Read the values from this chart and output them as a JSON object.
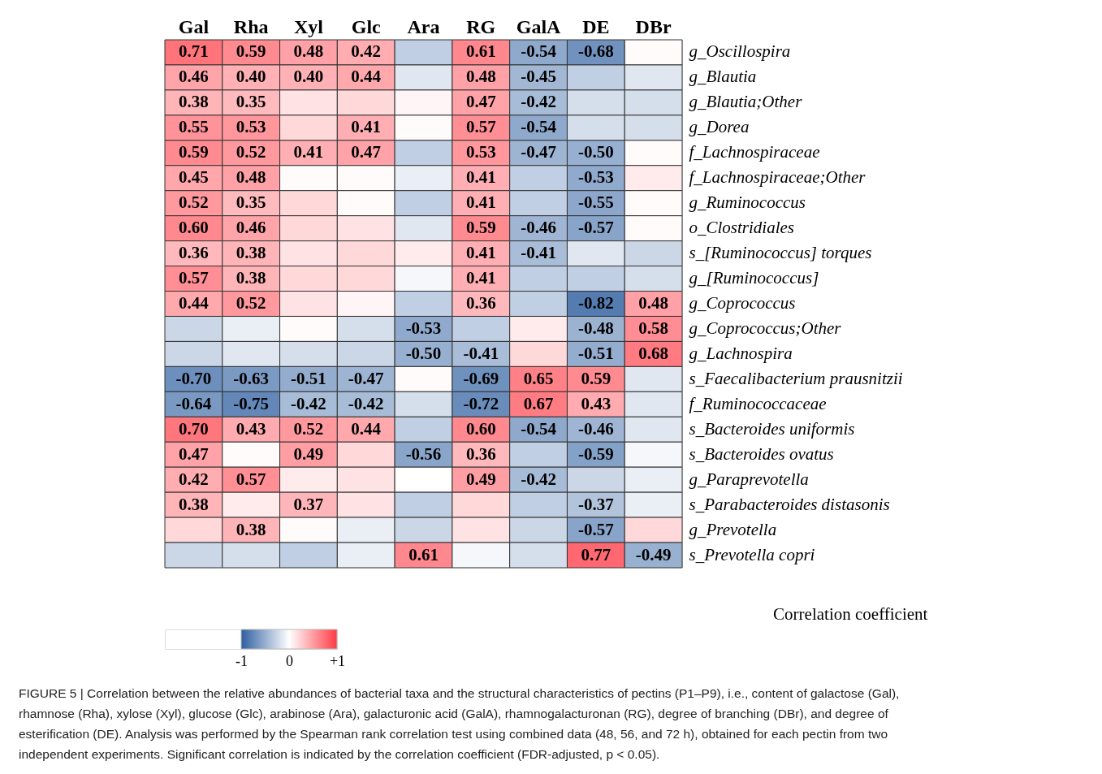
{
  "chart_data": {
    "type": "heatmap",
    "categories": [
      "Gal",
      "Rha",
      "Xyl",
      "Glc",
      "Ara",
      "RG",
      "GalA",
      "DE",
      "DBr"
    ],
    "y_categories": [
      "g_Oscillospira",
      "g_Blautia",
      "g_Blautia;Other",
      "g_Dorea",
      "f_Lachnospiraceae",
      "f_Lachnospiraceae;Other",
      "g_Ruminococcus",
      "o_Clostridiales",
      "s_[Ruminococcus] torques",
      "g_[Ruminococcus]",
      "g_Coprococcus",
      "g_Coprococcus;Other",
      "g_Lachnospira",
      "s_Faecalibacterium prausnitzii",
      "f_Ruminococcaceae",
      "s_Bacteroides uniformis",
      "s_Bacteroides ovatus",
      "g_Paraprevotella",
      "s_Parabacteroides distasonis",
      "g_Prevotella",
      "s_Prevotella copri"
    ],
    "cells": [
      [
        0.71,
        0.59,
        0.48,
        0.42,
        -0.3,
        0.61,
        -0.54,
        -0.68,
        0.02
      ],
      [
        0.46,
        0.4,
        0.4,
        0.44,
        -0.15,
        0.48,
        -0.45,
        -0.3,
        -0.15
      ],
      [
        0.38,
        0.35,
        0.15,
        0.2,
        0.05,
        0.47,
        -0.42,
        -0.2,
        -0.2
      ],
      [
        0.55,
        0.53,
        0.2,
        0.41,
        0.02,
        0.57,
        -0.54,
        -0.2,
        -0.2
      ],
      [
        0.59,
        0.52,
        0.41,
        0.47,
        -0.3,
        0.53,
        -0.47,
        -0.5,
        0.02
      ],
      [
        0.45,
        0.48,
        0.02,
        0.02,
        -0.1,
        0.41,
        -0.3,
        -0.53,
        0.1
      ],
      [
        0.52,
        0.35,
        0.2,
        0.02,
        -0.3,
        0.41,
        -0.3,
        -0.55,
        0.02
      ],
      [
        0.6,
        0.46,
        0.2,
        0.15,
        -0.15,
        0.59,
        -0.46,
        -0.57,
        0.02
      ],
      [
        0.36,
        0.38,
        0.15,
        0.2,
        0.1,
        0.41,
        -0.41,
        -0.15,
        -0.25
      ],
      [
        0.57,
        0.38,
        0.2,
        0.2,
        -0.05,
        0.41,
        -0.3,
        -0.3,
        -0.2
      ],
      [
        0.44,
        0.52,
        0.15,
        0.05,
        -0.3,
        0.36,
        -0.3,
        -0.82,
        0.48
      ],
      [
        -0.25,
        -0.1,
        0.02,
        -0.2,
        -0.53,
        -0.3,
        0.1,
        -0.48,
        0.58
      ],
      [
        -0.25,
        -0.15,
        -0.2,
        -0.25,
        -0.5,
        -0.41,
        0.2,
        -0.51,
        0.68
      ],
      [
        -0.7,
        -0.63,
        -0.51,
        -0.47,
        0.02,
        -0.69,
        0.65,
        0.59,
        -0.15
      ],
      [
        -0.64,
        -0.75,
        -0.42,
        -0.42,
        -0.2,
        -0.72,
        0.67,
        0.43,
        -0.15
      ],
      [
        0.7,
        0.43,
        0.52,
        0.44,
        -0.3,
        0.6,
        -0.54,
        -0.46,
        -0.15
      ],
      [
        0.47,
        0.02,
        0.49,
        0.2,
        -0.56,
        0.36,
        -0.3,
        -0.59,
        -0.05
      ],
      [
        0.42,
        0.57,
        0.1,
        0.15,
        0.0,
        0.49,
        -0.42,
        -0.25,
        -0.1
      ],
      [
        0.38,
        0.1,
        0.37,
        0.15,
        -0.3,
        0.2,
        -0.3,
        -0.37,
        -0.1
      ],
      [
        0.2,
        0.38,
        0.02,
        -0.1,
        -0.25,
        0.15,
        -0.25,
        -0.57,
        0.2
      ],
      [
        -0.25,
        -0.2,
        -0.3,
        -0.1,
        0.61,
        -0.05,
        -0.2,
        0.77,
        -0.49
      ]
    ],
    "cell_labels": [
      [
        "0.71",
        "0.59",
        "0.48",
        "0.42",
        null,
        "0.61",
        "-0.54",
        "-0.68",
        null
      ],
      [
        "0.46",
        "0.40",
        "0.40",
        "0.44",
        null,
        "0.48",
        "-0.45",
        null,
        null
      ],
      [
        "0.38",
        "0.35",
        null,
        null,
        null,
        "0.47",
        "-0.42",
        null,
        null
      ],
      [
        "0.55",
        "0.53",
        null,
        "0.41",
        null,
        "0.57",
        "-0.54",
        null,
        null
      ],
      [
        "0.59",
        "0.52",
        "0.41",
        "0.47",
        null,
        "0.53",
        "-0.47",
        "-0.50",
        null
      ],
      [
        "0.45",
        "0.48",
        null,
        null,
        null,
        "0.41",
        null,
        "-0.53",
        null
      ],
      [
        "0.52",
        "0.35",
        null,
        null,
        null,
        "0.41",
        null,
        "-0.55",
        null
      ],
      [
        "0.60",
        "0.46",
        null,
        null,
        null,
        "0.59",
        "-0.46",
        "-0.57",
        null
      ],
      [
        "0.36",
        "0.38",
        null,
        null,
        null,
        "0.41",
        "-0.41",
        null,
        null
      ],
      [
        "0.57",
        "0.38",
        null,
        null,
        null,
        "0.41",
        null,
        null,
        null
      ],
      [
        "0.44",
        "0.52",
        null,
        null,
        null,
        "0.36",
        null,
        "-0.82",
        "0.48"
      ],
      [
        null,
        null,
        null,
        null,
        "-0.53",
        null,
        null,
        "-0.48",
        "0.58"
      ],
      [
        null,
        null,
        null,
        null,
        "-0.50",
        "-0.41",
        null,
        "-0.51",
        "0.68"
      ],
      [
        "-0.70",
        "-0.63",
        "-0.51",
        "-0.47",
        null,
        "-0.69",
        "0.65",
        "0.59",
        null
      ],
      [
        "-0.64",
        "-0.75",
        "-0.42",
        "-0.42",
        null,
        "-0.72",
        "0.67",
        "0.43",
        null
      ],
      [
        "0.70",
        "0.43",
        "0.52",
        "0.44",
        null,
        "0.60",
        "-0.54",
        "-0.46",
        null
      ],
      [
        "0.47",
        null,
        "0.49",
        null,
        "-0.56",
        "0.36",
        null,
        "-0.59",
        null
      ],
      [
        "0.42",
        "0.57",
        null,
        null,
        null,
        "0.49",
        "-0.42",
        null,
        null
      ],
      [
        "0.38",
        null,
        "0.37",
        null,
        null,
        null,
        null,
        "-0.37",
        null
      ],
      [
        null,
        "0.38",
        null,
        null,
        null,
        null,
        null,
        "-0.57",
        null
      ],
      [
        null,
        null,
        null,
        null,
        "0.61",
        null,
        null,
        "0.77",
        "-0.49"
      ]
    ],
    "clabel": "Correlation coefficient",
    "clim": [
      -1,
      1
    ],
    "cticks": [
      -1,
      0,
      {
        "value": 1,
        "label": "+1"
      }
    ],
    "annotations": [
      "FIGURE 5 | Correlation between the relative abundances of bacterial taxa and the structural characteristics of pectins (P1–P9), i.e., content of galactose (Gal), rhamnose (Rha), xylose (Xyl), glucose (Glc), arabinose (Ara), galacturonic acid (GalA), rhamnogalacturonan (RG), degree of branching (DBr), and degree of esterification (DE). Analysis was performed by the Spearman rank correlation test using combined data (48, 56, and 72 h), obtained for each pectin from two independent experiments. Significant correlation is indicated by the correlation coefficient (FDR-adjusted, p < 0.05)."
    ]
  }
}
